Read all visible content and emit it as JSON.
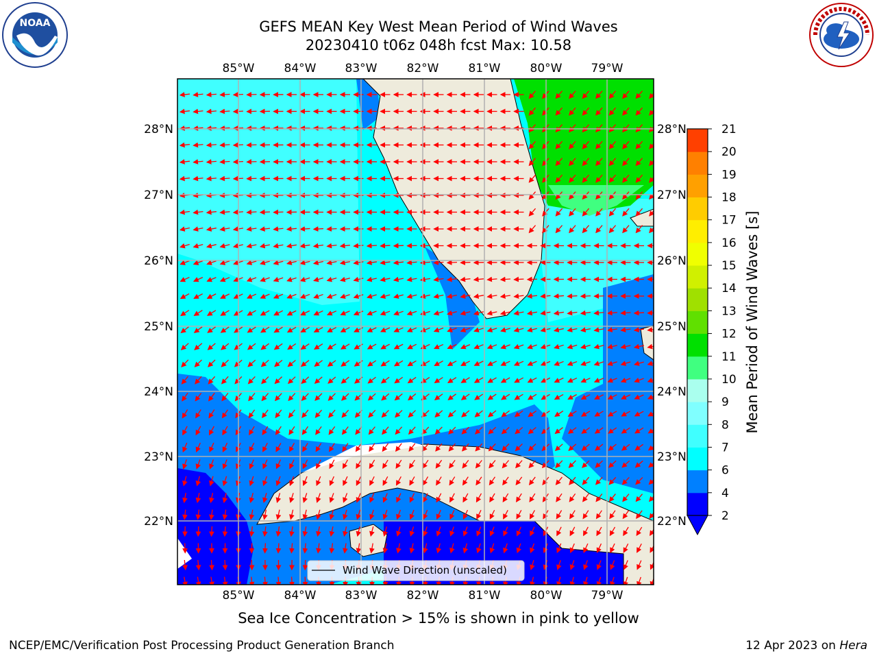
{
  "title": {
    "line1": "GEFS MEAN Key West Mean Period of Wind Waves",
    "line2": "20230410 t06z 048h fcst   Max: 10.58"
  },
  "caption": "Sea Ice Concentration > 15% is shown in pink to yellow",
  "footer": {
    "left": "NCEP/EMC/Verification Post Processing Product Generation Branch",
    "right_date": "12 Apr 2023 on ",
    "right_host": "Hera"
  },
  "logos": {
    "left": {
      "icon": "noaa-logo",
      "text": "NOAA"
    },
    "right": {
      "icon": "nws-logo",
      "text": "NATIONAL WEATHER SERVICE"
    }
  },
  "map": {
    "lon_labels": [
      "85°W",
      "84°W",
      "83°W",
      "82°W",
      "81°W",
      "80°W",
      "79°W"
    ],
    "lat_labels": [
      "28°N",
      "27°N",
      "26°N",
      "25°N",
      "24°N",
      "23°N",
      "22°N"
    ],
    "legend_label": "Wind Wave Direction (unscaled)",
    "arrow_color": "#ff0000",
    "land_color": "#eeebdc",
    "gridline_color": "#b0b0b0"
  },
  "colorbar": {
    "label": "Mean Period of Wind Waves [s]",
    "ticks": [
      "2",
      "4",
      "6",
      "7",
      "8",
      "9",
      "10",
      "11",
      "12",
      "13",
      "14",
      "15",
      "16",
      "17",
      "18",
      "19",
      "20",
      "21"
    ],
    "colors": [
      "#0000ff",
      "#0080ff",
      "#00ffff",
      "#40ffff",
      "#80ffff",
      "#aaffee",
      "#40ff80",
      "#00e000",
      "#60e000",
      "#a0e000",
      "#d0f000",
      "#f0ff00",
      "#ffee00",
      "#ffcc00",
      "#ffa000",
      "#ff8000",
      "#ff4000",
      "#ff0000"
    ]
  }
}
